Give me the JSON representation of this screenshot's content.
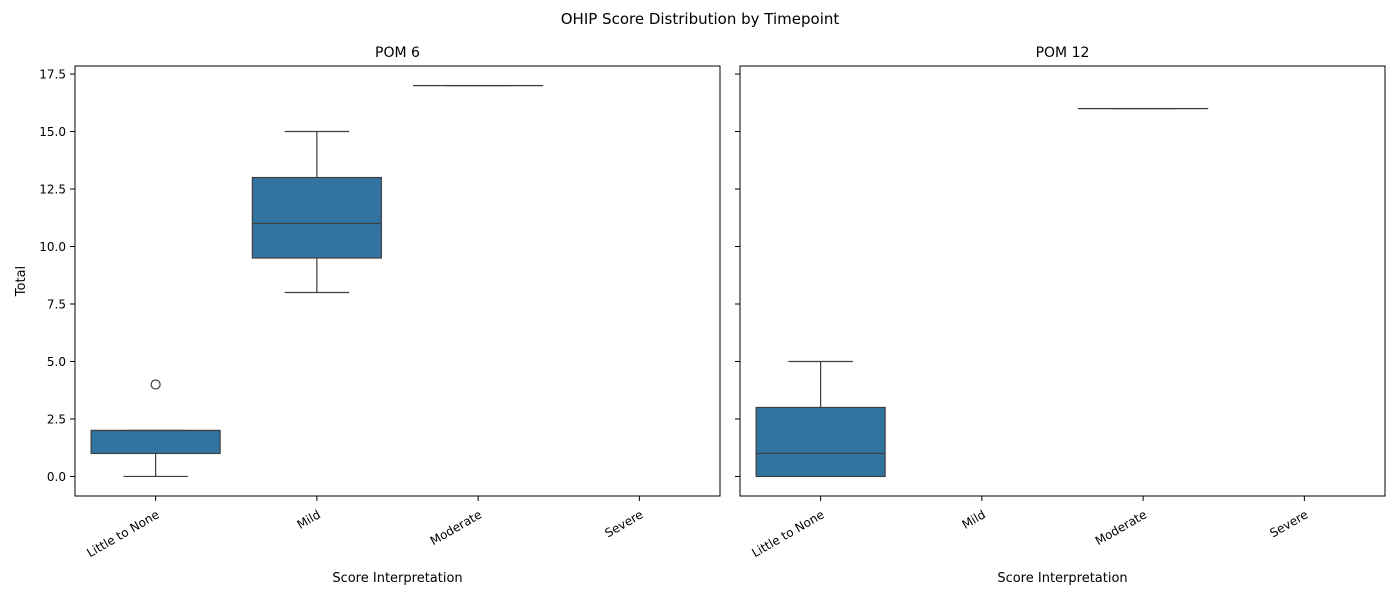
{
  "figure": {
    "title": "OHIP Score Distribution by Timepoint",
    "colors": {
      "box_fill": "#3274a1",
      "line": "#3f3f3f",
      "axis": "#000000",
      "background": "#ffffff"
    }
  },
  "chart_data": [
    {
      "type": "box",
      "title": "POM 6",
      "xlabel": "Score Interpretation",
      "ylabel": "Total",
      "categories": [
        "Little to None",
        "Mild",
        "Moderate",
        "Severe"
      ],
      "ylim": [
        -0.85,
        17.85
      ],
      "yticks": [
        0.0,
        2.5,
        5.0,
        7.5,
        10.0,
        12.5,
        15.0,
        17.5
      ],
      "ytick_labels": [
        "0.0",
        "2.5",
        "5.0",
        "7.5",
        "10.0",
        "12.5",
        "15.0",
        "17.5"
      ],
      "boxes": [
        {
          "category": "Little to None",
          "whisker_low": 0,
          "q1": 1,
          "median": 2,
          "q3": 2,
          "whisker_high": 2,
          "outliers": [
            4
          ]
        },
        {
          "category": "Mild",
          "whisker_low": 8,
          "q1": 9.5,
          "median": 11,
          "q3": 13,
          "whisker_high": 15,
          "outliers": []
        },
        {
          "category": "Moderate",
          "whisker_low": 17,
          "q1": 17,
          "median": 17,
          "q3": 17,
          "whisker_high": 17,
          "outliers": []
        },
        {
          "category": "Severe",
          "whisker_low": null,
          "q1": null,
          "median": null,
          "q3": null,
          "whisker_high": null,
          "outliers": []
        }
      ],
      "grid": false
    },
    {
      "type": "box",
      "title": "POM 12",
      "xlabel": "Score Interpretation",
      "ylabel": "",
      "categories": [
        "Little to None",
        "Mild",
        "Moderate",
        "Severe"
      ],
      "ylim": [
        -0.85,
        17.85
      ],
      "yticks": [
        0.0,
        2.5,
        5.0,
        7.5,
        10.0,
        12.5,
        15.0,
        17.5
      ],
      "ytick_labels": [],
      "boxes": [
        {
          "category": "Little to None",
          "whisker_low": 0,
          "q1": 0,
          "median": 1,
          "q3": 3,
          "whisker_high": 5,
          "outliers": []
        },
        {
          "category": "Mild",
          "whisker_low": null,
          "q1": null,
          "median": null,
          "q3": null,
          "whisker_high": null,
          "outliers": []
        },
        {
          "category": "Moderate",
          "whisker_low": 16,
          "q1": 16,
          "median": 16,
          "q3": 16,
          "whisker_high": 16,
          "outliers": []
        },
        {
          "category": "Severe",
          "whisker_low": null,
          "q1": null,
          "median": null,
          "q3": null,
          "whisker_high": null,
          "outliers": []
        }
      ],
      "grid": false
    }
  ]
}
